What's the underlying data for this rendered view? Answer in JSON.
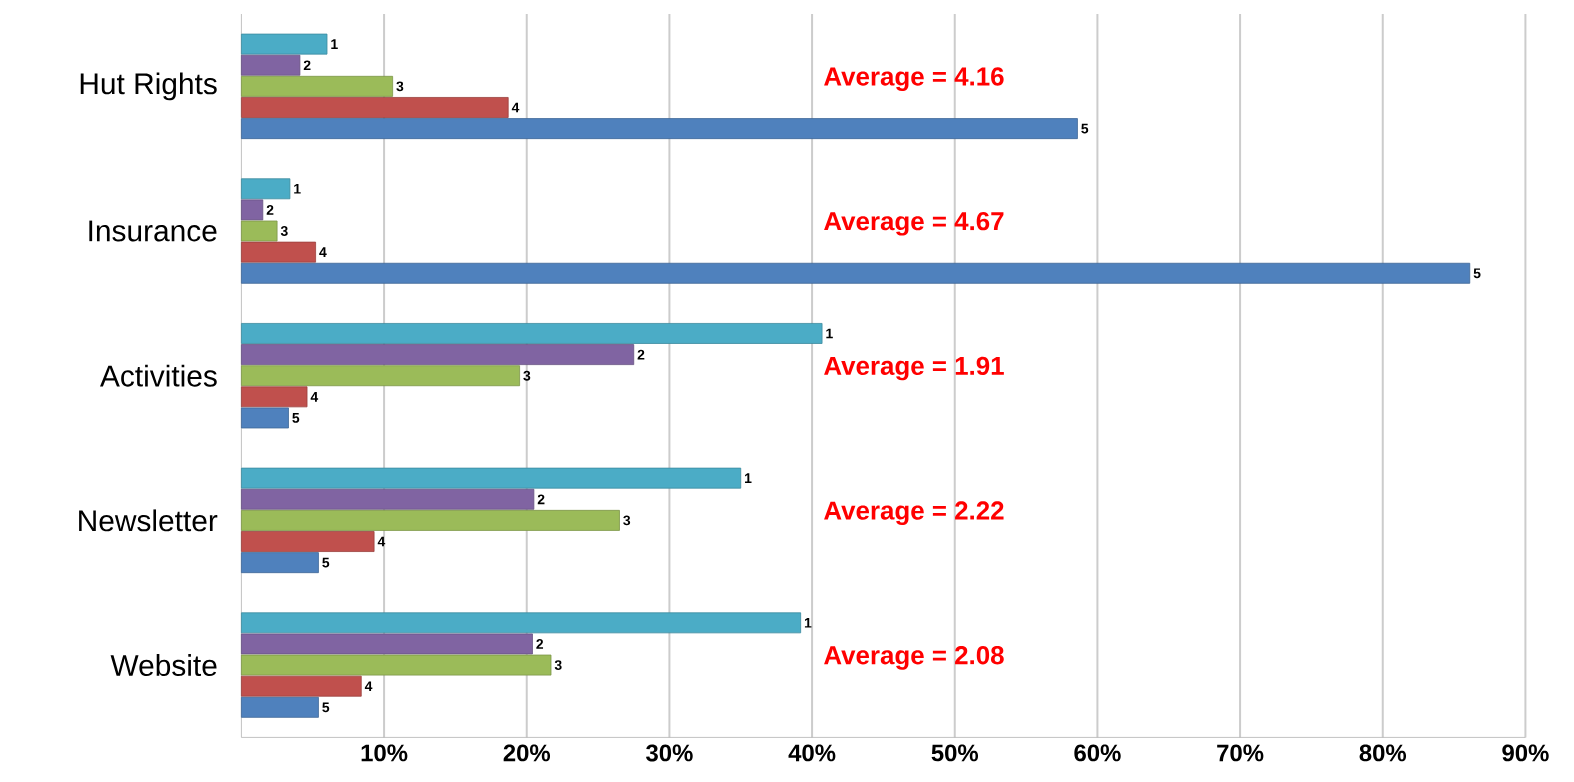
{
  "chart_data": {
    "type": "bar",
    "orientation": "horizontal",
    "categories": [
      "Hut Rights",
      "Insurance",
      "Activities",
      "Newsletter",
      "Website"
    ],
    "series": [
      {
        "name": "1",
        "color": "#4bacc6",
        "values": [
          6.0,
          3.4,
          40.7,
          35.0,
          39.2
        ]
      },
      {
        "name": "2",
        "color": "#8064a2",
        "values": [
          4.1,
          1.5,
          27.5,
          20.5,
          20.4
        ]
      },
      {
        "name": "3",
        "color": "#9bbb59",
        "values": [
          10.6,
          2.5,
          19.5,
          26.5,
          21.7
        ]
      },
      {
        "name": "4",
        "color": "#c0504d",
        "values": [
          18.7,
          5.2,
          4.6,
          9.3,
          8.4
        ]
      },
      {
        "name": "5",
        "color": "#4f81bd",
        "values": [
          58.6,
          86.1,
          3.3,
          5.4,
          5.4
        ]
      }
    ],
    "xlim": [
      0,
      90
    ],
    "xticks": [
      {
        "value": 10,
        "label": "10%"
      },
      {
        "value": 20,
        "label": "20%"
      },
      {
        "value": 30,
        "label": "30%"
      },
      {
        "value": 40,
        "label": "40%"
      },
      {
        "value": 50,
        "label": "50%"
      },
      {
        "value": 60,
        "label": "60%"
      },
      {
        "value": 70,
        "label": "70%"
      },
      {
        "value": 80,
        "label": "80%"
      },
      {
        "value": 90,
        "label": "90%"
      }
    ],
    "grid": "x",
    "annotations": [
      "Average = 4.16",
      "Average = 4.67",
      "Average = 1.91",
      "Average = 2.22",
      "Average = 2.08"
    ]
  }
}
